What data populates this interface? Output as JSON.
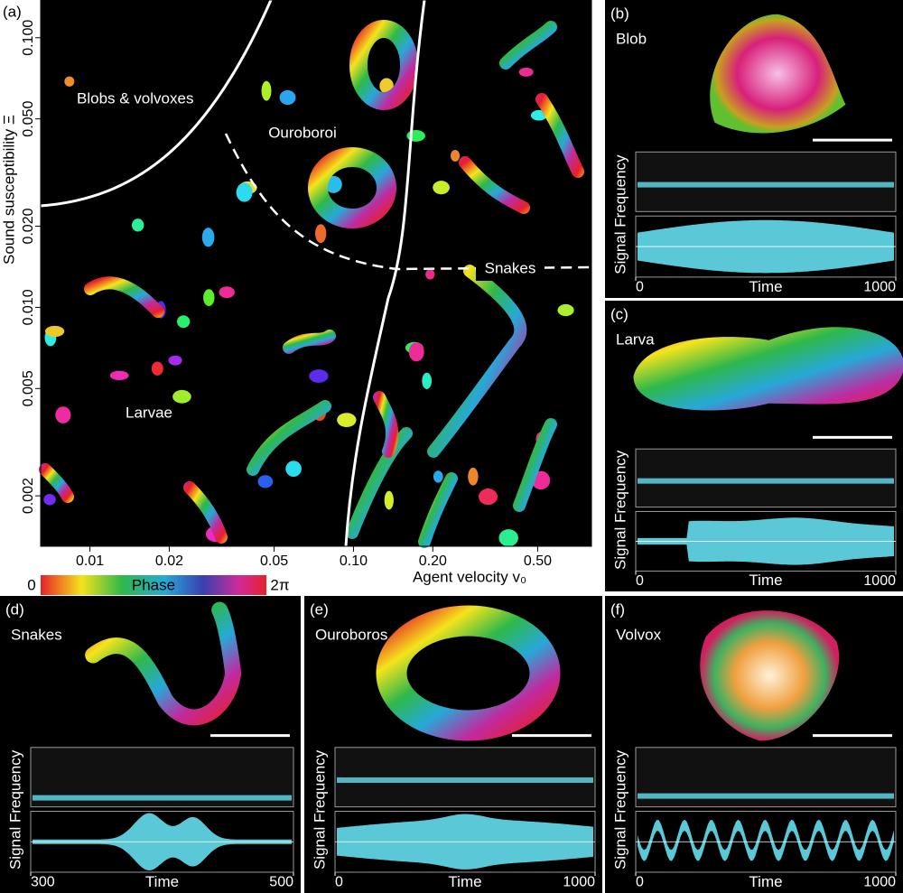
{
  "panels": [
    {
      "label": "(a)",
      "ylabel": "Sound susceptibility Ξ",
      "xlabel": "Agent velocity v₀",
      "log": true,
      "xlim": [
        0.0065,
        0.8
      ],
      "ylim": [
        0.0013,
        0.138
      ],
      "xticks": [
        0.01,
        0.02,
        0.05,
        {
          "value": 0.1,
          "label": "0.10"
        },
        {
          "value": 0.2,
          "label": "0.20"
        },
        {
          "value": 0.5,
          "label": "0.50"
        }
      ],
      "yticks": [
        {
          "value": 0.1,
          "label": "0.100"
        },
        {
          "value": 0.05,
          "label": "0.050"
        },
        {
          "value": 0.02,
          "label": "0.020"
        },
        {
          "value": 0.01,
          "label": "0.010"
        },
        0.005,
        0.002
      ],
      "regions": [
        "Blobs & volvoxes",
        "Ouroboroi",
        "Snakes",
        "Larvae"
      ],
      "colorbar": {
        "min_label": "0",
        "title": "Phase",
        "max_label": "2π"
      }
    },
    {
      "label": "(b)",
      "name": "Blob",
      "ylabel": "Signal Frequency",
      "xlabel": "Time",
      "xlim": [
        0,
        1000
      ],
      "xticks": [
        0,
        1000
      ]
    },
    {
      "label": "(c)",
      "name": "Larva",
      "ylabel": "Signal Frequency",
      "xlabel": "Time",
      "xlim": [
        0,
        1000
      ],
      "xticks": [
        0,
        1000
      ]
    },
    {
      "label": "(d)",
      "name": "Snakes",
      "ylabel": "Signal Frequency",
      "xlabel": "Time",
      "xlim": [
        300,
        500
      ],
      "xticks": [
        300,
        500
      ]
    },
    {
      "label": "(e)",
      "name": "Ouroboros",
      "ylabel": "Signal Frequency",
      "xlabel": "Time",
      "xlim": [
        0,
        1000
      ],
      "xticks": [
        0,
        1000
      ]
    },
    {
      "label": "(f)",
      "name": "Volvox",
      "ylabel": "Signal Frequency",
      "xlabel": "Time",
      "xlim": [
        0,
        1000
      ],
      "xticks": [
        0,
        1000
      ]
    }
  ]
}
